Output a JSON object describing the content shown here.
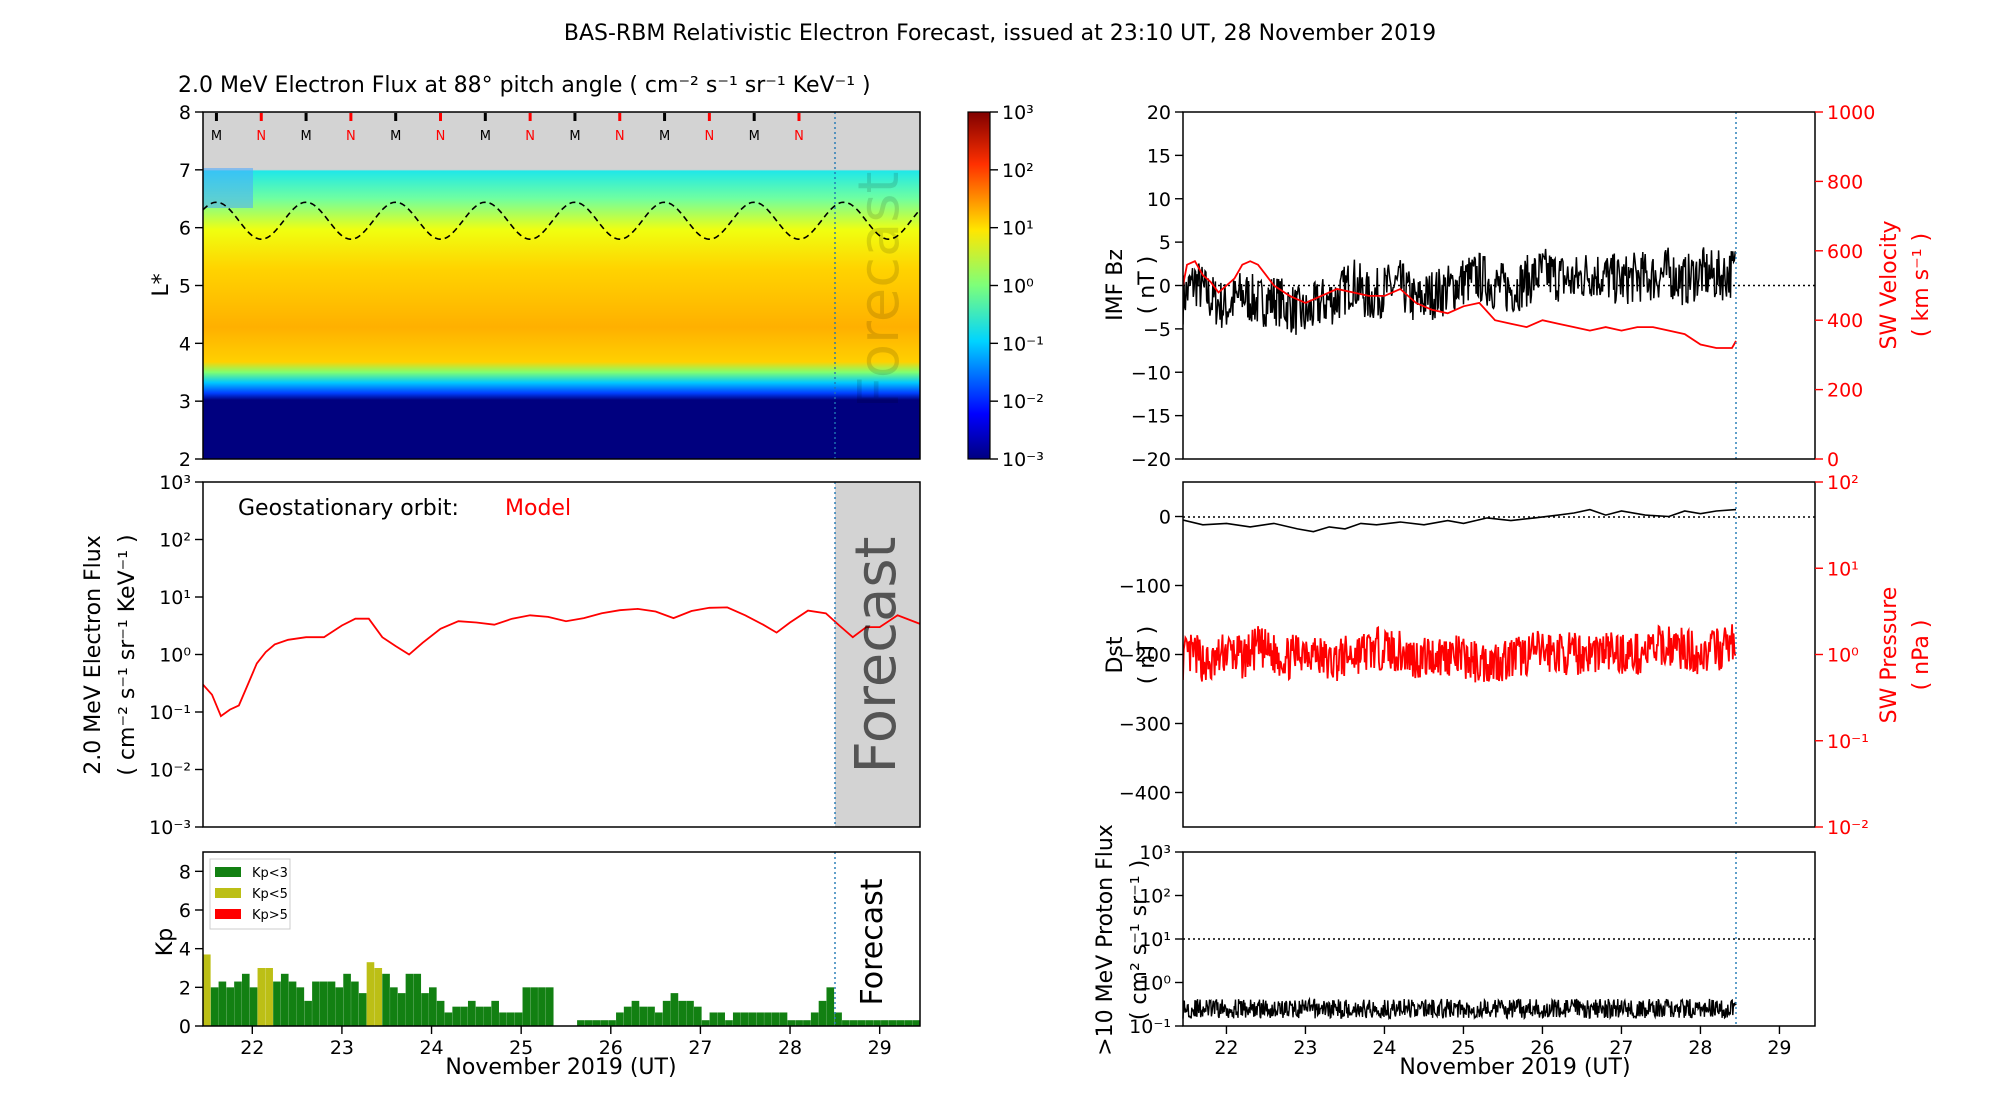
{
  "title": "BAS-RBM Relativistic Electron Forecast, issued at 23:10 UT, 28 November 2019",
  "colors": {
    "model": "#ff0000",
    "kp_low": "#128012",
    "kp_mid": "#bcbf16",
    "kp_high": "#ff0000",
    "forecast_line": "#1f77b4",
    "forecast_text": "#bdbdbd"
  },
  "chart_data": [
    {
      "id": "flux-heatmap",
      "type": "heatmap",
      "title": "2.0 MeV Electron Flux at 88° pitch angle ( cm⁻² s⁻¹ sr⁻¹ KeV⁻¹ )",
      "ylabel": "L*",
      "xlim": [
        21.45,
        29.45
      ],
      "ylim": [
        2,
        8
      ],
      "y_ticks": [
        "2",
        "3",
        "4",
        "5",
        "6",
        "7",
        "8"
      ],
      "forecast_x": 28.45,
      "forecast_label": "Forecast",
      "mlt_markers": [
        "M",
        "N",
        "M",
        "N",
        "M",
        "N",
        "M",
        "N",
        "M",
        "N",
        "M",
        "N",
        "M",
        "N"
      ],
      "colorbar": {
        "ticks": [
          "10⁻³",
          "10⁻²",
          "10⁻¹",
          "10⁰",
          "10¹",
          "10²",
          "10³"
        ],
        "range_log10": [
          -3,
          3
        ]
      },
      "geo_L_curve": {
        "mean": 6.12,
        "amplitude": 0.32,
        "period_days": 1.0,
        "peak_day": 21.6
      }
    },
    {
      "id": "geo-flux",
      "type": "line",
      "ylabel": "2.0 MeV Electron Flux",
      "ylabel_units": "( cm⁻² s⁻¹ sr⁻¹ KeV⁻¹ )",
      "annotation_prefix": "Geostationary orbit:",
      "annotation_series": "Model",
      "ylog": true,
      "ylim": [
        0.001,
        1000
      ],
      "y_ticks": [
        "10⁻³",
        "10⁻²",
        "10⁻¹",
        "10⁰",
        "10¹",
        "10²",
        "10³"
      ],
      "xlim": [
        21.45,
        29.45
      ],
      "forecast_x": 28.45,
      "forecast_label": "Forecast",
      "series": [
        {
          "name": "Model",
          "x": [
            21.45,
            21.55,
            21.65,
            21.75,
            21.85,
            21.95,
            22.05,
            22.15,
            22.25,
            22.4,
            22.6,
            22.8,
            23.0,
            23.15,
            23.3,
            23.45,
            23.6,
            23.75,
            23.9,
            24.1,
            24.3,
            24.5,
            24.7,
            24.9,
            25.1,
            25.3,
            25.5,
            25.7,
            25.9,
            26.1,
            26.3,
            26.5,
            26.7,
            26.9,
            27.1,
            27.3,
            27.5,
            27.7,
            27.85,
            28.0,
            28.2,
            28.4,
            28.55,
            28.7,
            28.85,
            29.0,
            29.2,
            29.45
          ],
          "y": [
            0.3,
            0.2,
            0.085,
            0.11,
            0.13,
            0.3,
            0.7,
            1.1,
            1.5,
            1.8,
            2.0,
            2.0,
            3.2,
            4.2,
            4.2,
            2.0,
            1.4,
            1.0,
            1.6,
            2.8,
            3.8,
            3.6,
            3.3,
            4.2,
            4.8,
            4.5,
            3.8,
            4.3,
            5.2,
            5.9,
            6.2,
            5.6,
            4.3,
            5.7,
            6.5,
            6.6,
            4.8,
            3.3,
            2.4,
            3.6,
            5.8,
            5.2,
            3.2,
            2.0,
            3.0,
            3.0,
            4.8,
            3.4
          ]
        }
      ]
    },
    {
      "id": "kp",
      "type": "bar",
      "ylabel": "Kp",
      "xlabel": "November 2019 (UT)",
      "ylim": [
        0,
        9
      ],
      "y_ticks": [
        "0",
        "2",
        "4",
        "6",
        "8"
      ],
      "x_ticks": [
        "22",
        "23",
        "24",
        "25",
        "26",
        "27",
        "28",
        "29"
      ],
      "xlim": [
        21.45,
        29.45
      ],
      "forecast_x": 28.45,
      "forecast_label": "Forecast",
      "legend": [
        "Kp<3",
        "Kp<5",
        "Kp>5"
      ],
      "legend_position": "top-left",
      "bar_width_days": 0.1,
      "values": [
        3.7,
        2.0,
        2.3,
        2.0,
        2.3,
        2.7,
        2.0,
        3.0,
        3.0,
        2.3,
        2.7,
        2.3,
        2.0,
        1.3,
        2.3,
        2.3,
        2.3,
        2.0,
        2.7,
        2.3,
        1.7,
        3.3,
        3.0,
        2.7,
        2.0,
        1.7,
        2.7,
        2.7,
        1.7,
        2.0,
        1.3,
        0.7,
        1.0,
        1.0,
        1.3,
        1.0,
        1.0,
        1.3,
        0.7,
        0.7,
        0.7,
        2.0,
        2.0,
        2.0,
        2.0,
        0.0,
        0.0,
        0.0,
        0.3,
        0.3,
        0.3,
        0.3,
        0.3,
        0.7,
        1.0,
        1.3,
        1.0,
        1.0,
        0.7,
        1.3,
        1.7,
        1.3,
        1.3,
        1.0,
        0.3,
        0.7,
        0.7,
        0.3,
        0.7,
        0.7,
        0.7,
        0.7,
        0.7,
        0.7,
        0.7,
        0.3,
        0.3,
        0.3,
        0.7,
        1.3,
        2.0,
        0.7,
        0.3,
        0.3,
        0.3,
        0.3,
        0.3,
        0.3,
        0.3,
        0.3,
        0.3,
        0.3
      ]
    },
    {
      "id": "imf-sw",
      "type": "line",
      "ylabel_left": "IMF Bz",
      "ylabel_left_units": "( nT )",
      "ylabel_right": "SW Velocity",
      "ylabel_right_units": "( km s⁻¹ )",
      "ylim_left": [
        -20,
        20
      ],
      "y_ticks_left": [
        "−20",
        "−15",
        "−10",
        "−5",
        "0",
        "5",
        "10",
        "15",
        "20"
      ],
      "ylim_right": [
        0,
        1000
      ],
      "y_ticks_right": [
        "0",
        "200",
        "400",
        "600",
        "800",
        "1000"
      ],
      "xlim": [
        21.45,
        29.45
      ],
      "forecast_x": 28.45,
      "series": [
        {
          "name": "IMF Bz",
          "x": [
            21.45,
            21.6,
            21.8,
            22.0,
            22.2,
            22.4,
            22.6,
            22.8,
            23.0,
            23.2,
            23.4,
            23.6,
            23.8,
            24.0,
            24.2,
            24.4,
            24.6,
            24.8,
            25.0,
            25.2,
            25.4,
            25.6,
            25.8,
            26.0,
            26.2,
            26.4,
            26.6,
            26.8,
            27.0,
            27.2,
            27.4,
            27.6,
            27.8,
            28.0,
            28.2,
            28.4,
            28.45
          ],
          "y": [
            -1.5,
            0.5,
            -1.5,
            -2.5,
            -1.0,
            -2.0,
            -1.5,
            -2.5,
            -3.5,
            -2.0,
            -1.5,
            0.5,
            -1.5,
            -0.5,
            0.0,
            -2.0,
            -1.0,
            -0.5,
            0.5,
            1.0,
            0.0,
            -0.5,
            0.5,
            1.5,
            1.0,
            0.5,
            1.5,
            1.0,
            0.5,
            1.0,
            1.0,
            1.5,
            0.5,
            1.5,
            1.0,
            1.5,
            2.0
          ]
        },
        {
          "name": "SW Velocity",
          "x": [
            21.45,
            21.5,
            21.6,
            21.7,
            21.8,
            21.9,
            22.0,
            22.1,
            22.2,
            22.3,
            22.4,
            22.5,
            22.6,
            22.8,
            23.0,
            23.2,
            23.4,
            23.6,
            23.8,
            24.0,
            24.2,
            24.4,
            24.6,
            24.8,
            25.0,
            25.2,
            25.4,
            25.6,
            25.8,
            26.0,
            26.2,
            26.4,
            26.6,
            26.8,
            27.0,
            27.2,
            27.4,
            27.6,
            27.8,
            28.0,
            28.2,
            28.4,
            28.45
          ],
          "y": [
            500,
            560,
            570,
            530,
            510,
            480,
            500,
            520,
            560,
            570,
            560,
            530,
            500,
            470,
            450,
            470,
            490,
            480,
            470,
            470,
            490,
            450,
            430,
            420,
            440,
            450,
            400,
            390,
            380,
            400,
            390,
            380,
            370,
            380,
            370,
            380,
            380,
            370,
            360,
            330,
            320,
            320,
            340
          ]
        }
      ]
    },
    {
      "id": "dst-pressure",
      "type": "line",
      "ylabel_left": "Dst",
      "ylabel_left_units": "( nT )",
      "ylabel_right": "SW Pressure",
      "ylabel_right_units": "( nPa )",
      "ylim_left": [
        -450,
        50
      ],
      "y_ticks_left": [
        "−400",
        "−300",
        "−200",
        "−100",
        "0"
      ],
      "ylim_right": [
        0.01,
        100
      ],
      "y_ticks_right": [
        "10⁻²",
        "10⁻¹",
        "10⁰",
        "10¹",
        "10²"
      ],
      "xlim": [
        21.45,
        29.45
      ],
      "forecast_x": 28.45,
      "series": [
        {
          "name": "Dst",
          "x": [
            21.45,
            21.7,
            22.0,
            22.3,
            22.6,
            22.9,
            23.1,
            23.3,
            23.5,
            23.7,
            23.9,
            24.2,
            24.5,
            24.8,
            25.0,
            25.3,
            25.6,
            25.9,
            26.2,
            26.4,
            26.6,
            26.8,
            27.0,
            27.3,
            27.6,
            27.8,
            28.0,
            28.2,
            28.45
          ],
          "y": [
            -5,
            -12,
            -10,
            -15,
            -10,
            -18,
            -22,
            -15,
            -18,
            -10,
            -12,
            -8,
            -12,
            -6,
            -10,
            -2,
            -6,
            -2,
            2,
            5,
            10,
            2,
            8,
            2,
            0,
            8,
            4,
            8,
            10
          ]
        },
        {
          "name": "SW Pressure",
          "x": [
            21.45,
            21.6,
            21.8,
            22.0,
            22.2,
            22.4,
            22.6,
            22.8,
            23.0,
            23.3,
            23.6,
            24.0,
            24.4,
            24.8,
            25.2,
            25.6,
            26.0,
            26.4,
            26.8,
            27.2,
            27.6,
            28.0,
            28.3,
            28.45
          ],
          "y": [
            0.9,
            1.0,
            0.7,
            1.1,
            0.9,
            1.2,
            1.0,
            0.9,
            1.2,
            0.8,
            1.0,
            1.2,
            0.9,
            1.0,
            0.8,
            0.9,
            1.1,
            1.0,
            1.1,
            1.0,
            1.3,
            1.0,
            1.2,
            1.5
          ]
        }
      ]
    },
    {
      "id": "proton-flux",
      "type": "line",
      "ylabel": ">10 MeV Proton Flux",
      "ylabel_units": "( cm² s⁻¹ sr⁻¹ )",
      "xlabel": "November 2019 (UT)",
      "ylog": true,
      "ylim": [
        0.1,
        1000
      ],
      "y_ticks": [
        "10⁻¹",
        "10⁰",
        "10¹",
        "10²",
        "10³"
      ],
      "x_ticks": [
        "22",
        "23",
        "24",
        "25",
        "26",
        "27",
        "28",
        "29"
      ],
      "xlim": [
        21.45,
        29.45
      ],
      "forecast_x": 28.45,
      "threshold": 10,
      "series": [
        {
          "name": "Proton Flux",
          "x": [
            21.45,
            28.45
          ],
          "y": [
            0.25,
            0.25
          ]
        }
      ]
    }
  ]
}
